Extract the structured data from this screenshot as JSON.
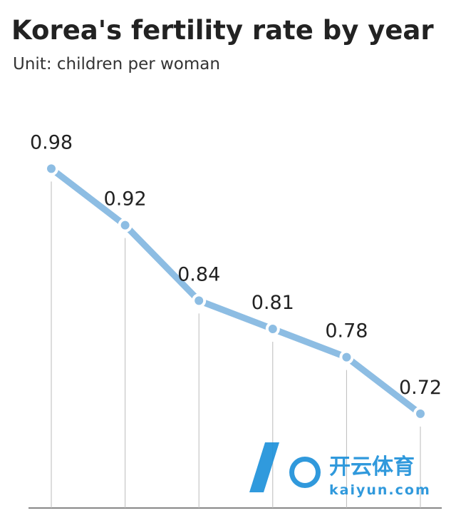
{
  "chart_data": {
    "type": "line",
    "title": "Korea's fertility rate by year",
    "subtitle": "Unit: children per woman",
    "categories": [
      null,
      null,
      null,
      null,
      null,
      null
    ],
    "series": [
      {
        "name": null,
        "color": "#8dbde3",
        "values": [
          0.98,
          0.92,
          0.84,
          0.81,
          0.78,
          0.72
        ]
      }
    ],
    "ylim": [
      0.62,
      1.0
    ]
  },
  "watermark": {
    "brand": "开云体育",
    "url": "kaiyun.com"
  }
}
